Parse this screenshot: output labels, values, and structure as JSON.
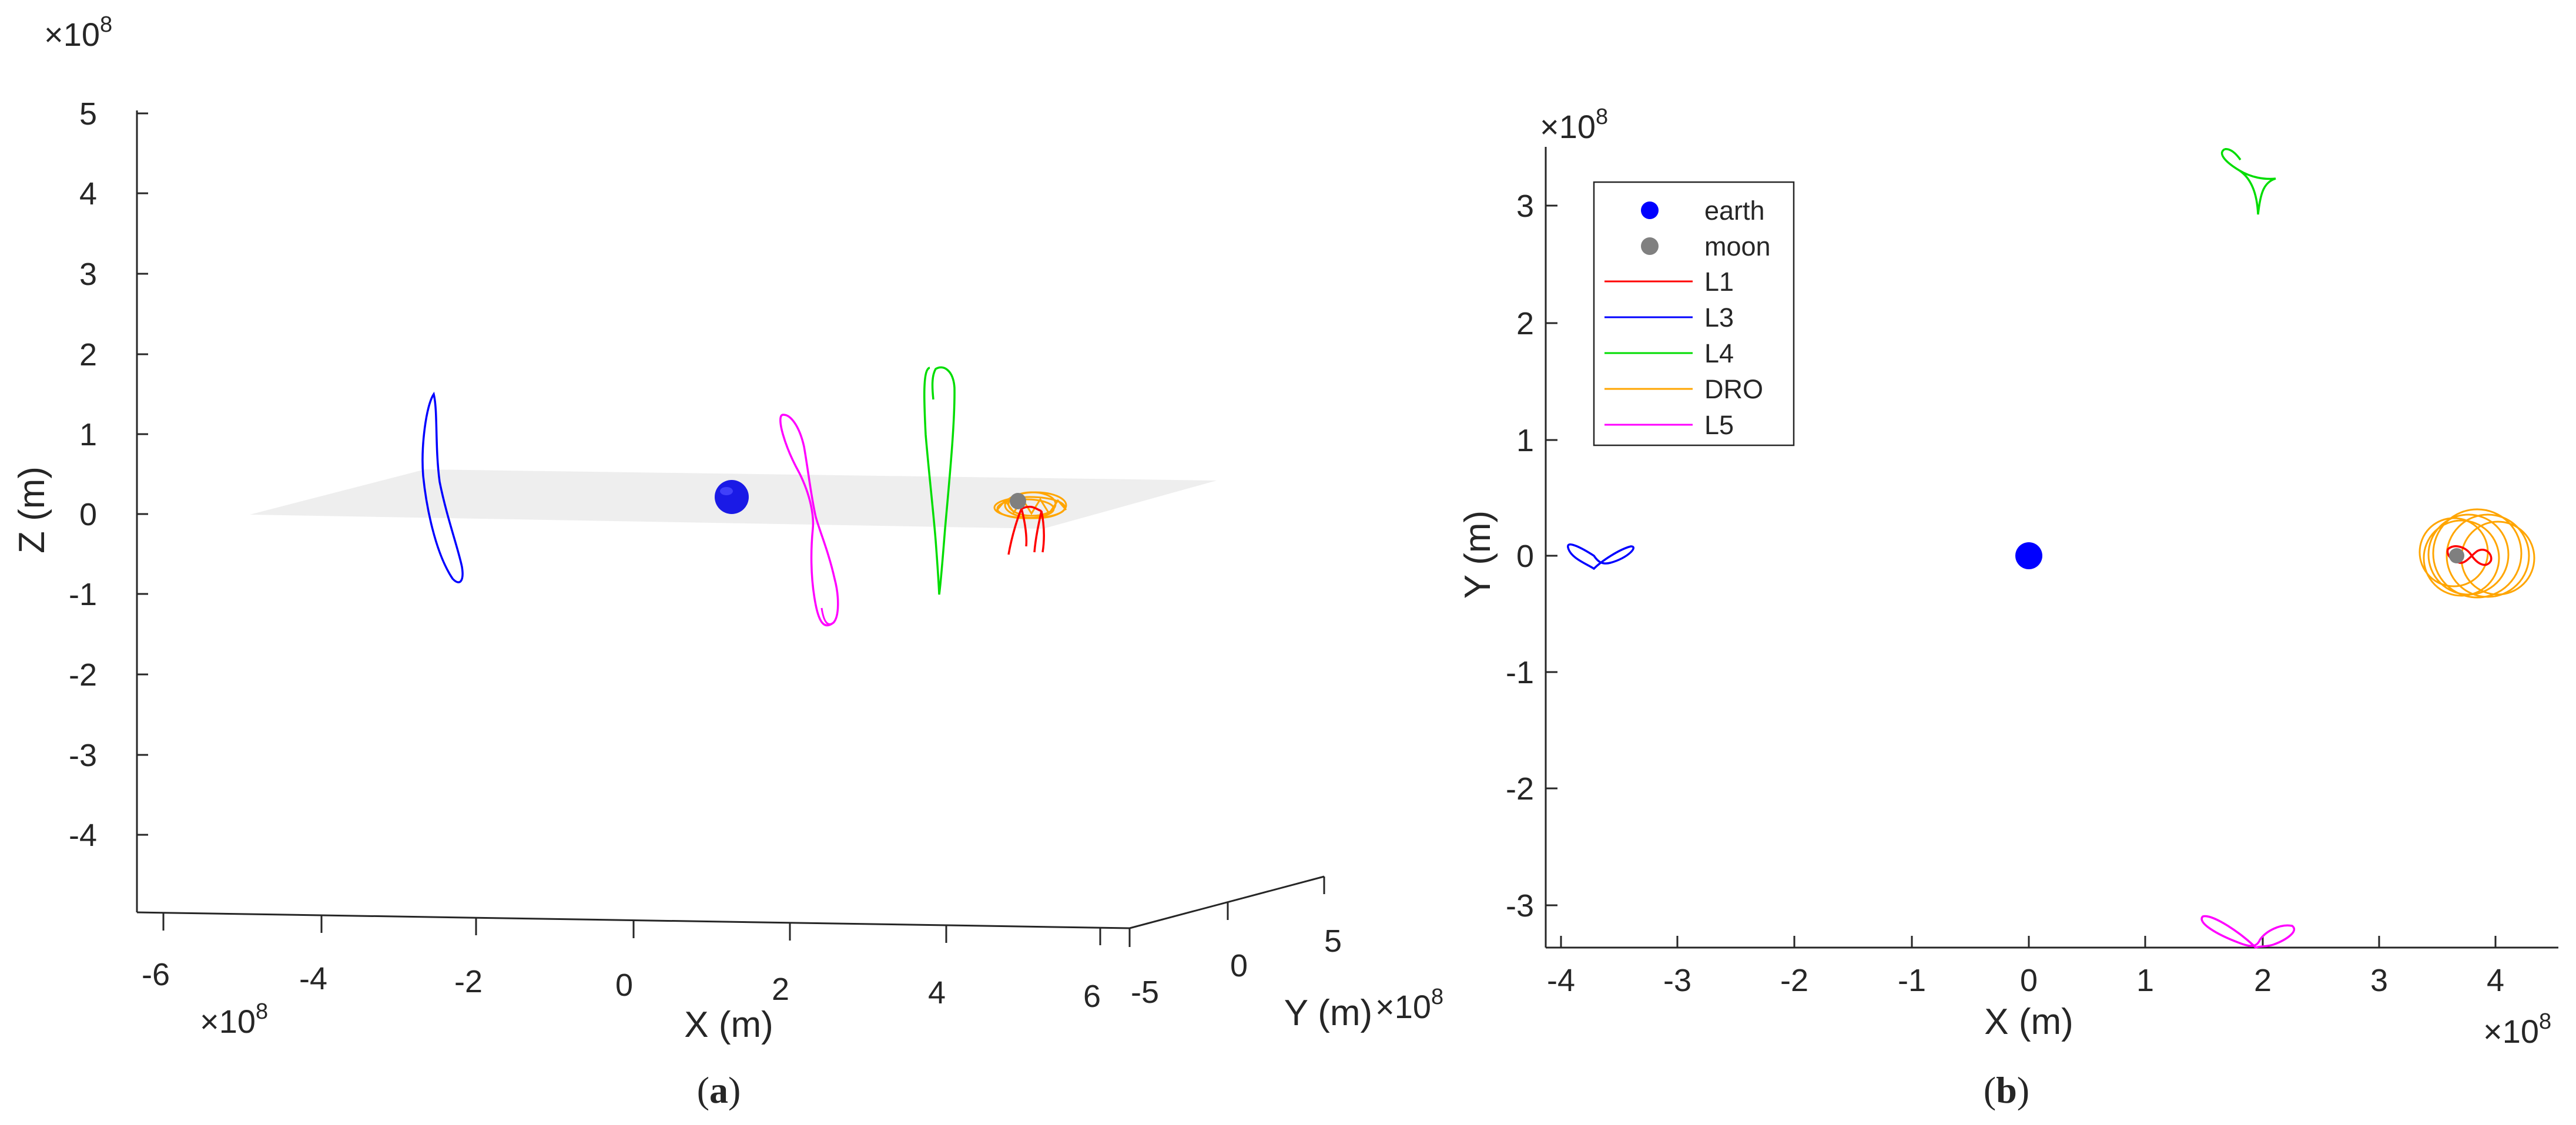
{
  "figure": {
    "panel_a": {
      "caption": "(a)",
      "caption_letter": "a",
      "xlabel": "X (m)",
      "ylabel": "Y (m)",
      "zlabel": "Z (m)",
      "x_ticks": [
        "-6",
        "-4",
        "-2",
        "0",
        "2",
        "4",
        "6"
      ],
      "y_ticks": [
        "-5",
        "0",
        "5"
      ],
      "z_ticks": [
        "5",
        "4",
        "3",
        "2",
        "1",
        "0",
        "-1",
        "-2",
        "-3",
        "-4"
      ],
      "x_exponent": "×10",
      "y_exponent": "×10",
      "z_exponent": "×10",
      "exponent_power": "8"
    },
    "panel_b": {
      "caption": "(b)",
      "caption_letter": "b",
      "xlabel": "X (m)",
      "ylabel": "Y (m)",
      "x_ticks": [
        "-4",
        "-3",
        "-2",
        "-1",
        "0",
        "1",
        "2",
        "3",
        "4"
      ],
      "y_ticks": [
        "3",
        "2",
        "1",
        "0",
        "-1",
        "-2",
        "-3"
      ],
      "x_exponent": "×10",
      "y_exponent": "×10",
      "exponent_power": "8",
      "legend": [
        {
          "label": "earth",
          "kind": "marker",
          "color": "#0000ff"
        },
        {
          "label": "moon",
          "kind": "marker",
          "color": "#808080"
        },
        {
          "label": "L1",
          "kind": "line",
          "color": "#ff0000"
        },
        {
          "label": "L3",
          "kind": "line",
          "color": "#0000ff"
        },
        {
          "label": "L4",
          "kind": "line",
          "color": "#00dd00"
        },
        {
          "label": "DRO",
          "kind": "line",
          "color": "#ffa500"
        },
        {
          "label": "L5",
          "kind": "line",
          "color": "#ff00ff"
        }
      ]
    }
  },
  "chart_data": [
    {
      "type": "line",
      "subtype": "3d-trajectories",
      "panel": "a",
      "xlabel": "X (m)",
      "ylabel": "Y (m)",
      "zlabel": "Z (m)",
      "scale": "1e8",
      "xlim": [
        -6.5,
        6.5
      ],
      "ylim": [
        -5,
        5
      ],
      "zlim": [
        -5,
        5
      ],
      "bodies": [
        {
          "name": "earth",
          "x": 0,
          "y": 0,
          "z": 0,
          "color": "#0000ff"
        },
        {
          "name": "moon",
          "x": 3.84,
          "y": 0,
          "z": 0,
          "color": "#808080"
        }
      ],
      "series": [
        {
          "name": "L3",
          "color": "#0000ff",
          "description": "closed vertical loop near X≈-3.8, Z from about -0.85 to 1.5"
        },
        {
          "name": "L5",
          "color": "#ff00ff",
          "description": "figure-eight near X≈1.9, Y≈-3.3, Z from about -1.4 to 1.2"
        },
        {
          "name": "L4",
          "color": "#00dd00",
          "description": "figure-eight near X≈1.9, Y≈3.3, Z from about -1.0 to 1.8"
        },
        {
          "name": "DRO",
          "color": "#ffa500",
          "description": "rings around the moon in the orbital plane"
        },
        {
          "name": "L1",
          "color": "#ff0000",
          "description": "small lobes near the moon dipping to Z≈-0.5"
        }
      ]
    },
    {
      "type": "line",
      "subtype": "2d-trajectories",
      "panel": "b",
      "title": "",
      "xlabel": "X (m)",
      "ylabel": "Y (m)",
      "scale": "1e8",
      "xlim": [
        -4.2,
        4.5
      ],
      "ylim": [
        -3.35,
        3.5
      ],
      "bodies": [
        {
          "name": "earth",
          "x": 0,
          "y": 0,
          "color": "#0000ff"
        },
        {
          "name": "moon",
          "x": 3.65,
          "y": 0,
          "color": "#808080"
        }
      ],
      "series": [
        {
          "name": "L3",
          "color": "#0000ff",
          "center": [
            -3.8,
            0.0
          ],
          "description": "small butterfly-shaped loop"
        },
        {
          "name": "L4",
          "color": "#00dd00",
          "center": [
            1.8,
            3.3
          ],
          "description": "small cusped loop"
        },
        {
          "name": "L5",
          "color": "#ff00ff",
          "center": [
            1.85,
            -3.25
          ],
          "description": "small butterfly-shaped loop"
        },
        {
          "name": "DRO",
          "color": "#ffa500",
          "center": [
            3.9,
            0.0
          ],
          "description": "overlapping rings of radius about 0.38"
        },
        {
          "name": "L1",
          "color": "#ff0000",
          "center": [
            3.7,
            0.0
          ],
          "description": "small lobes near the moon"
        }
      ],
      "legend_position": "top-left"
    }
  ]
}
